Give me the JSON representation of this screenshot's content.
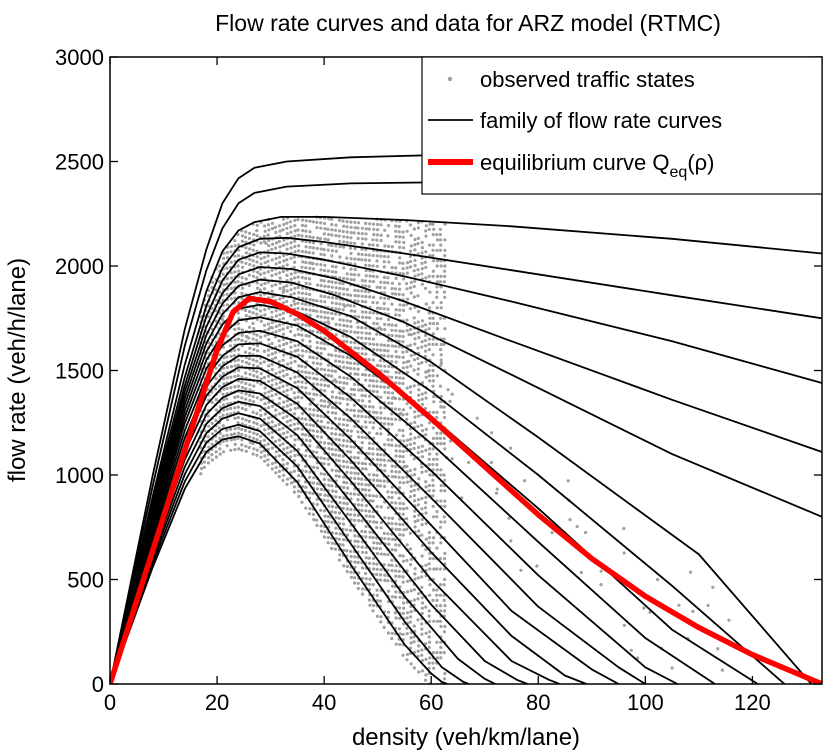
{
  "chart_data": {
    "type": "scatter",
    "title": "Flow rate curves and data for ARZ model (RTMC)",
    "xlabel": "density (veh/km/lane)",
    "ylabel": "flow rate (veh/h/lane)",
    "xlim": [
      0,
      133
    ],
    "ylim": [
      0,
      3000
    ],
    "x_ticks": [
      0,
      20,
      40,
      60,
      80,
      100,
      120
    ],
    "y_ticks": [
      0,
      500,
      1000,
      1500,
      2000,
      2500,
      3000
    ],
    "grid": false,
    "legend_position": "top-right",
    "legend": [
      {
        "label": "observed traffic states",
        "marker": "dot",
        "color": "#a0a0a0"
      },
      {
        "label": "family of flow rate curves",
        "marker": "line",
        "color": "#000000"
      },
      {
        "label": "equilibrium curve Q",
        "subscript": "eq",
        "suffix": "(ρ)",
        "marker": "line",
        "color": "#ff0000"
      }
    ],
    "colors": {
      "observations": "#a0a0a0",
      "family": "#000000",
      "equilibrium": "#ff0000"
    },
    "equilibrium_curve": {
      "name": "equilibrium curve Qeq(ρ)",
      "x": [
        0,
        5,
        10,
        15,
        20,
        23,
        26,
        30,
        35,
        40,
        50,
        60,
        70,
        80,
        90,
        100,
        110,
        120,
        133
      ],
      "y": [
        0,
        400,
        800,
        1200,
        1600,
        1780,
        1845,
        1830,
        1770,
        1690,
        1490,
        1270,
        1040,
        810,
        600,
        420,
        270,
        140,
        0
      ]
    },
    "family_curves": [
      {
        "x": [
          0,
          8,
          14,
          18,
          21,
          24,
          27,
          33,
          45,
          60,
          80,
          110,
          133
        ],
        "y": [
          0,
          1000,
          1700,
          2080,
          2300,
          2420,
          2470,
          2500,
          2520,
          2530,
          2545,
          2555,
          2565
        ]
      },
      {
        "x": [
          0,
          8,
          14,
          18,
          21,
          24,
          27,
          33,
          45,
          60,
          80,
          110,
          133
        ],
        "y": [
          0,
          950,
          1620,
          1980,
          2180,
          2300,
          2350,
          2380,
          2395,
          2400,
          2405,
          2410,
          2410
        ]
      },
      {
        "x": [
          0,
          8,
          14,
          18,
          21,
          24,
          27,
          32,
          40,
          55,
          75,
          105,
          133
        ],
        "y": [
          0,
          900,
          1530,
          1880,
          2070,
          2170,
          2210,
          2235,
          2235,
          2220,
          2190,
          2130,
          2060
        ]
      },
      {
        "x": [
          0,
          8,
          14,
          18,
          21,
          24,
          28,
          33,
          40,
          55,
          75,
          105,
          133
        ],
        "y": [
          0,
          880,
          1470,
          1810,
          1990,
          2090,
          2130,
          2135,
          2115,
          2060,
          1980,
          1860,
          1750
        ]
      },
      {
        "x": [
          0,
          8,
          14,
          18,
          21,
          24,
          28,
          33,
          40,
          55,
          75,
          105,
          133
        ],
        "y": [
          0,
          860,
          1430,
          1760,
          1930,
          2030,
          2065,
          2060,
          2030,
          1950,
          1830,
          1640,
          1440
        ]
      },
      {
        "x": [
          0,
          8,
          14,
          18,
          21,
          24,
          28,
          34,
          42,
          55,
          75,
          105,
          133
        ],
        "y": [
          0,
          840,
          1400,
          1710,
          1870,
          1960,
          1995,
          1985,
          1940,
          1830,
          1640,
          1360,
          1110
        ]
      },
      {
        "x": [
          0,
          8,
          14,
          18,
          21,
          24,
          28,
          34,
          42,
          55,
          75,
          105,
          133
        ],
        "y": [
          0,
          820,
          1370,
          1670,
          1820,
          1905,
          1935,
          1920,
          1860,
          1730,
          1480,
          1100,
          800
        ]
      },
      {
        "x": [
          0,
          8,
          14,
          18,
          21,
          24,
          28,
          34,
          45,
          60,
          80,
          110,
          131
        ],
        "y": [
          0,
          800,
          1340,
          1630,
          1770,
          1850,
          1875,
          1850,
          1760,
          1540,
          1180,
          620,
          0
        ]
      },
      {
        "x": [
          0,
          8,
          14,
          18,
          21,
          24,
          28,
          35,
          45,
          60,
          80,
          105,
          126
        ],
        "y": [
          0,
          780,
          1310,
          1590,
          1720,
          1795,
          1815,
          1780,
          1660,
          1400,
          1000,
          470,
          0
        ]
      },
      {
        "x": [
          0,
          8,
          14,
          18,
          21,
          24,
          28,
          35,
          45,
          60,
          80,
          105,
          121
        ],
        "y": [
          0,
          760,
          1280,
          1550,
          1670,
          1740,
          1755,
          1715,
          1570,
          1280,
          840,
          260,
          0
        ]
      },
      {
        "x": [
          0,
          8,
          14,
          18,
          21,
          24,
          28,
          35,
          45,
          60,
          80,
          100,
          113
        ],
        "y": [
          0,
          740,
          1250,
          1510,
          1620,
          1680,
          1690,
          1640,
          1470,
          1150,
          680,
          220,
          0
        ]
      },
      {
        "x": [
          0,
          8,
          14,
          18,
          21,
          24,
          28,
          35,
          45,
          60,
          80,
          100,
          106
        ],
        "y": [
          0,
          720,
          1215,
          1470,
          1570,
          1625,
          1630,
          1565,
          1370,
          1020,
          520,
          80,
          0
        ]
      },
      {
        "x": [
          0,
          8,
          14,
          18,
          21,
          24,
          28,
          35,
          45,
          60,
          80,
          95,
          100
        ],
        "y": [
          0,
          700,
          1180,
          1425,
          1520,
          1570,
          1570,
          1490,
          1270,
          890,
          370,
          80,
          0
        ]
      },
      {
        "x": [
          0,
          8,
          14,
          18,
          21,
          24,
          28,
          35,
          45,
          60,
          75,
          90,
          95
        ],
        "y": [
          0,
          680,
          1145,
          1380,
          1470,
          1515,
          1510,
          1415,
          1170,
          760,
          350,
          70,
          0
        ]
      },
      {
        "x": [
          0,
          8,
          14,
          18,
          21,
          24,
          28,
          35,
          45,
          60,
          75,
          85,
          89
        ],
        "y": [
          0,
          660,
          1110,
          1335,
          1420,
          1460,
          1450,
          1340,
          1070,
          630,
          230,
          40,
          0
        ]
      },
      {
        "x": [
          0,
          8,
          14,
          18,
          21,
          24,
          28,
          35,
          45,
          60,
          75,
          82,
          84
        ],
        "y": [
          0,
          640,
          1075,
          1290,
          1370,
          1405,
          1390,
          1265,
          970,
          500,
          110,
          20,
          0
        ]
      },
      {
        "x": [
          0,
          8,
          14,
          18,
          21,
          24,
          28,
          35,
          45,
          60,
          70,
          76,
          78
        ],
        "y": [
          0,
          620,
          1040,
          1245,
          1320,
          1350,
          1330,
          1190,
          870,
          380,
          110,
          20,
          0
        ]
      },
      {
        "x": [
          0,
          8,
          14,
          18,
          21,
          24,
          28,
          35,
          45,
          55,
          65,
          70,
          72
        ],
        "y": [
          0,
          600,
          1005,
          1200,
          1270,
          1295,
          1270,
          1115,
          770,
          420,
          120,
          25,
          0
        ]
      },
      {
        "x": [
          0,
          8,
          14,
          18,
          21,
          24,
          28,
          35,
          45,
          55,
          62,
          66,
          67
        ],
        "y": [
          0,
          580,
          970,
          1155,
          1220,
          1240,
          1210,
          1040,
          670,
          300,
          80,
          10,
          0
        ]
      },
      {
        "x": [
          0,
          8,
          14,
          18,
          21,
          24,
          28,
          35,
          45,
          55,
          60,
          62,
          63
        ],
        "y": [
          0,
          560,
          935,
          1110,
          1170,
          1185,
          1150,
          965,
          570,
          190,
          50,
          10,
          0
        ]
      }
    ]
  }
}
